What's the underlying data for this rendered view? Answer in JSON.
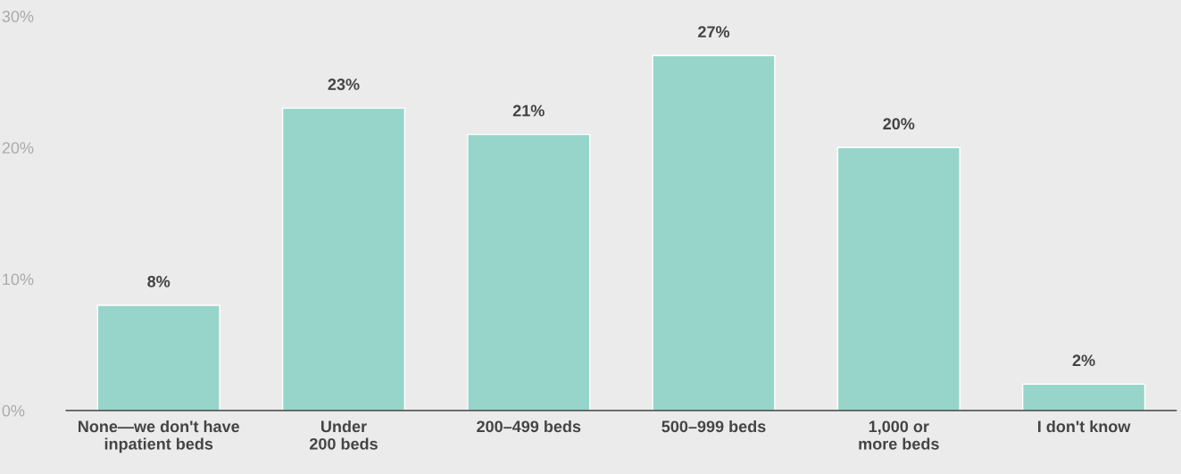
{
  "chart_data": {
    "type": "bar",
    "categories": [
      "None—we don't have\ninpatient beds",
      "Under\n200 beds",
      "200–499 beds",
      "500–999 beds",
      "1,000 or\nmore beds",
      "I don't know"
    ],
    "values": [
      8,
      23,
      21,
      27,
      20,
      2
    ],
    "value_labels": [
      "8%",
      "23%",
      "21%",
      "27%",
      "20%",
      "2%"
    ],
    "color": "#97d5ca",
    "ylim": [
      0,
      30
    ],
    "yticks": [
      {
        "value": 0,
        "label": "0%"
      },
      {
        "value": 10,
        "label": "10%"
      },
      {
        "value": 20,
        "label": "20%"
      },
      {
        "value": 30,
        "label": "30%"
      }
    ],
    "grid": false,
    "legend": false
  }
}
